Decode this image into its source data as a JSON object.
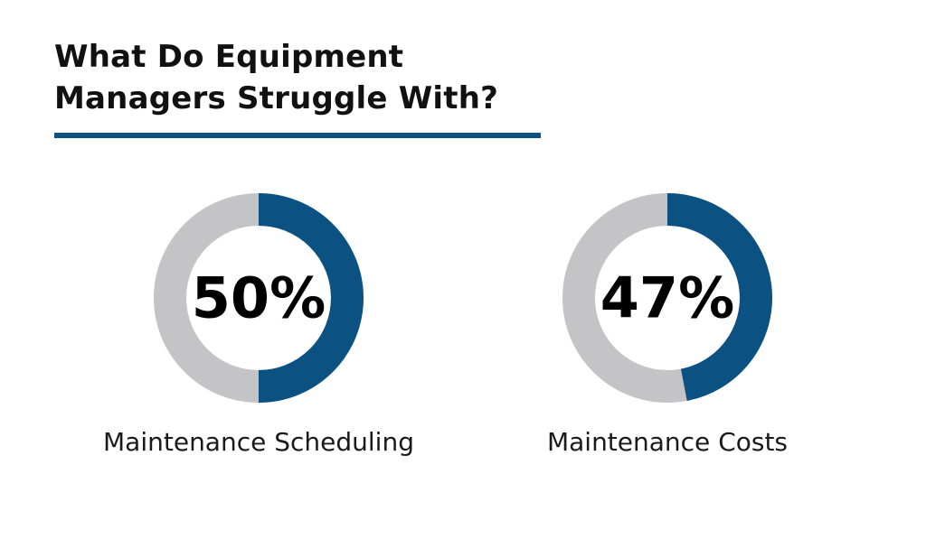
{
  "chart_data": {
    "type": "pie",
    "title": "What Do Equipment Managers Struggle With?",
    "title_lines": [
      "What Do Equipment",
      "Managers Struggle With?"
    ],
    "unit": "%",
    "colors": {
      "value": "#0b5283",
      "remainder": "#c4c4c6",
      "rule": "#0b5283"
    },
    "series": [
      {
        "name": "Maintenance Scheduling",
        "value": 50,
        "display": "50%",
        "label": "Maintenance Scheduling"
      },
      {
        "name": "Maintenance Costs",
        "value": 47,
        "display": "47%",
        "label": "Maintenance Costs"
      }
    ]
  }
}
